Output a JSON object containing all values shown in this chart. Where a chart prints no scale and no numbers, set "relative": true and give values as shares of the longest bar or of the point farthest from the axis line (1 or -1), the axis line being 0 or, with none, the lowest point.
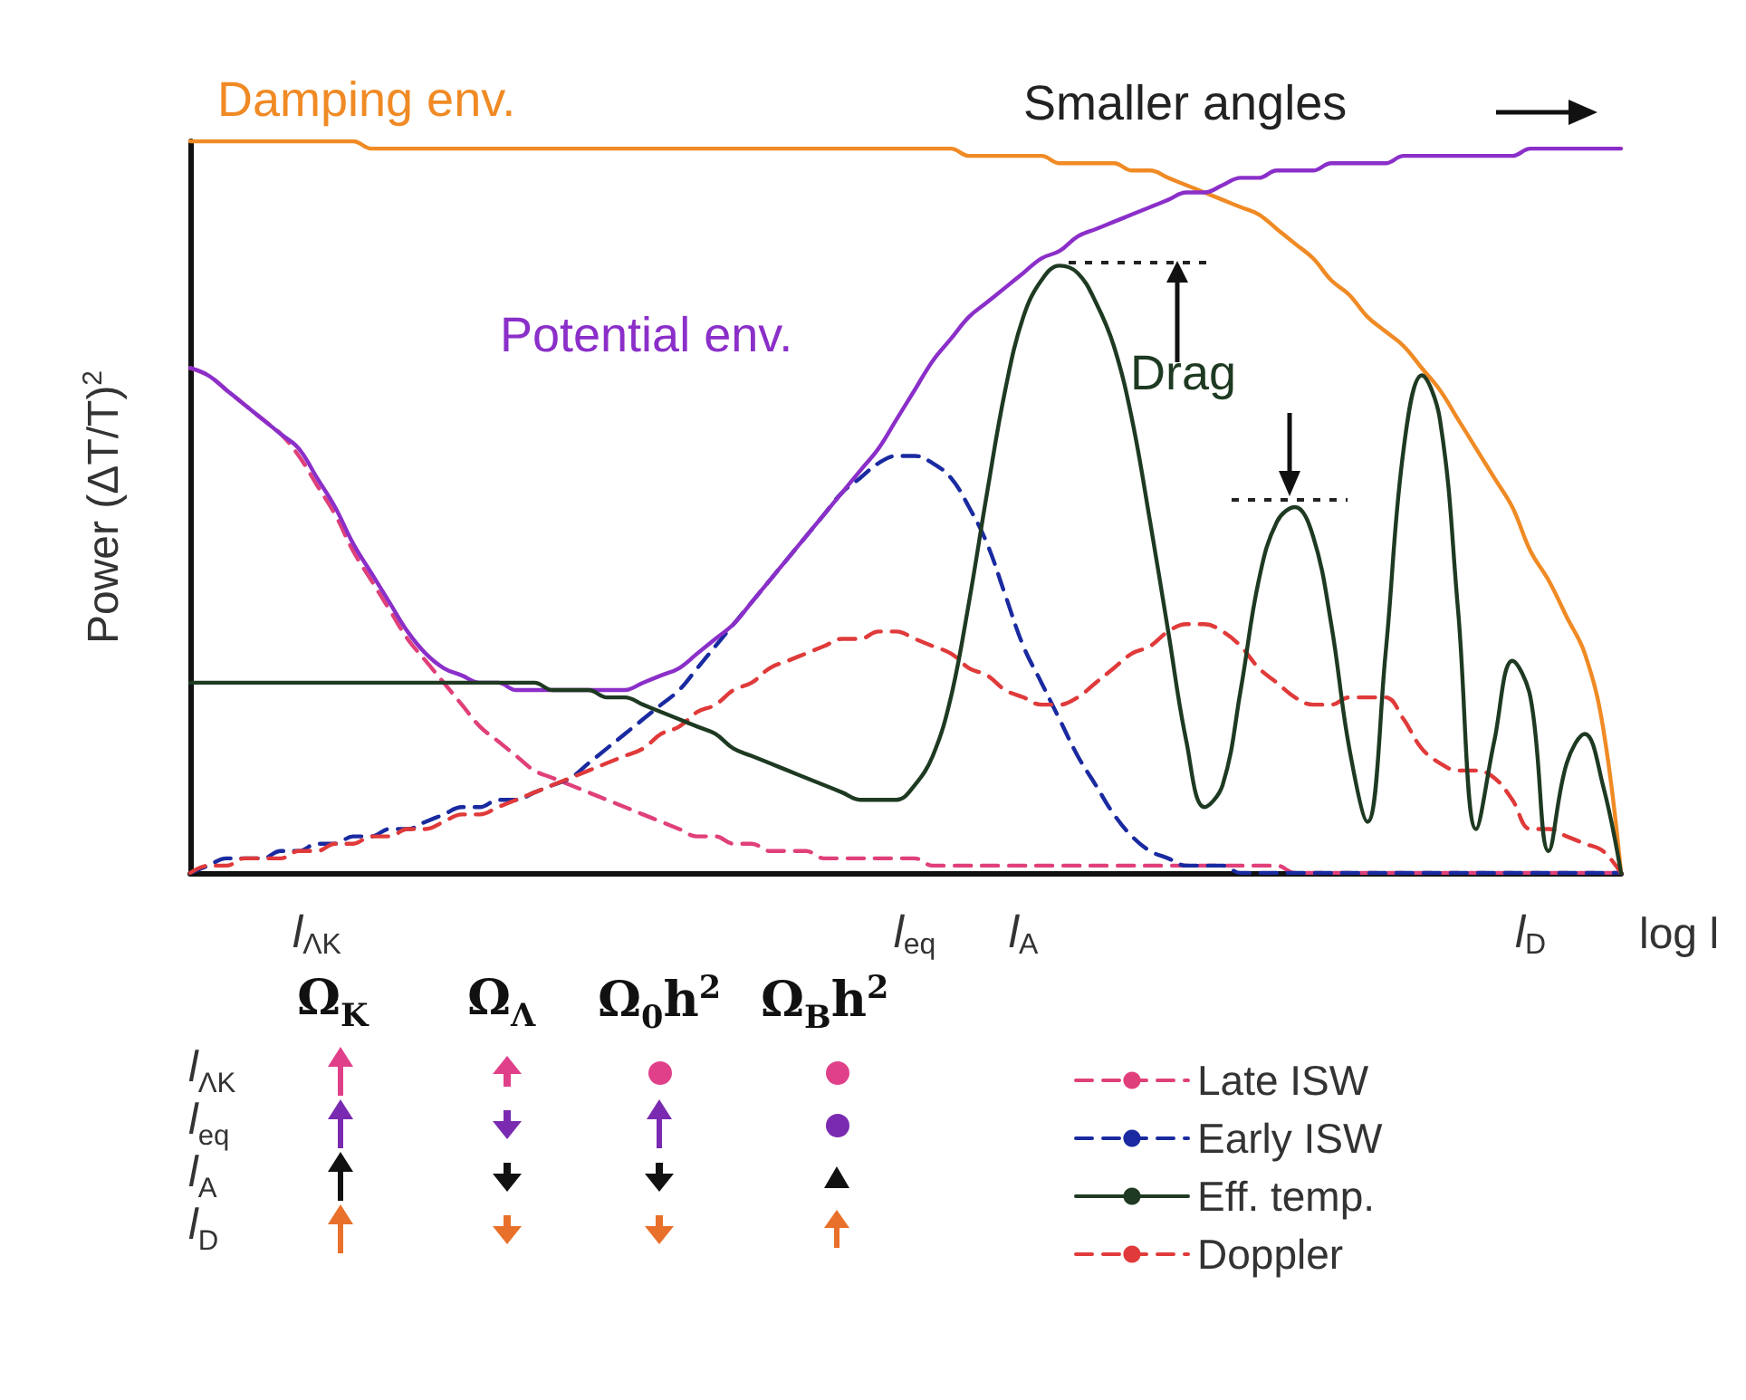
{
  "chart_data": {
    "type": "line",
    "relative": true,
    "ylabel": "Power (ΔT/T)$^{2}$",
    "xlabel": "log l",
    "categories": [
      null,
      null,
      null,
      null,
      null,
      null,
      null,
      "l$_{ΛK}$",
      null,
      null,
      null,
      null,
      null,
      null,
      null,
      null,
      null,
      null,
      null,
      null,
      null,
      null,
      null,
      null,
      null,
      null,
      null,
      null,
      null,
      null,
      null,
      null,
      null,
      null,
      null,
      null,
      null,
      null,
      null,
      null,
      "l$_{eq}$",
      null,
      null,
      null,
      null,
      null,
      "l$_{A}$",
      null,
      null,
      null,
      null,
      null,
      null,
      null,
      null,
      null,
      null,
      null,
      null,
      null,
      null,
      null,
      null,
      null,
      null,
      null,
      null,
      null,
      null,
      null,
      null,
      null,
      null,
      null,
      "l$_{D}$",
      null,
      null,
      null,
      null,
      null
    ],
    "series": [
      {
        "color": "#f08a24",
        "line_style": "solid",
        "values": [
          1.0,
          1.0,
          1.0,
          1.0,
          1.0,
          1.0,
          1.0,
          1.0,
          1.0,
          1.0,
          0.99,
          0.99,
          0.99,
          0.99,
          0.99,
          0.99,
          0.99,
          0.99,
          0.99,
          0.99,
          0.99,
          0.99,
          0.99,
          0.99,
          0.99,
          0.99,
          0.99,
          0.99,
          0.99,
          0.99,
          0.99,
          0.99,
          0.99,
          0.99,
          0.99,
          0.99,
          0.99,
          0.99,
          0.99,
          0.99,
          0.99,
          0.99,
          0.99,
          0.98,
          0.98,
          0.98,
          0.98,
          0.98,
          0.97,
          0.97,
          0.97,
          0.97,
          0.96,
          0.96,
          0.95,
          0.94,
          0.93,
          0.92,
          0.91,
          0.9,
          0.88,
          0.86,
          0.84,
          0.81,
          0.79,
          0.76,
          0.74,
          0.72,
          0.69,
          0.66,
          0.62,
          0.58,
          0.54,
          0.5,
          0.44,
          0.4,
          0.35,
          0.3,
          0.2,
          0
        ]
      },
      {
        "color": "#8b2fc9",
        "line_style": "solid",
        "values": [
          0.69,
          0.68,
          0.66,
          0.64,
          0.62,
          0.6,
          0.58,
          0.54,
          0.5,
          0.45,
          0.41,
          0.37,
          0.33,
          0.3,
          0.28,
          0.27,
          0.26,
          0.26,
          0.25,
          0.25,
          0.25,
          0.25,
          0.25,
          0.25,
          0.25,
          0.26,
          0.27,
          0.28,
          0.3,
          0.32,
          0.34,
          0.37,
          0.4,
          0.43,
          0.46,
          0.49,
          0.52,
          0.55,
          0.58,
          0.62,
          0.66,
          0.7,
          0.73,
          0.76,
          0.78,
          0.8,
          0.82,
          0.84,
          0.85,
          0.87,
          0.88,
          0.89,
          0.9,
          0.91,
          0.92,
          0.93,
          0.93,
          0.94,
          0.95,
          0.95,
          0.96,
          0.96,
          0.96,
          0.97,
          0.97,
          0.97,
          0.97,
          0.98,
          0.98,
          0.98,
          0.98,
          0.98,
          0.98,
          0.98,
          0.99,
          0.99,
          0.99,
          0.99,
          0.99,
          0.99
        ]
      },
      {
        "name": "Late ISW",
        "color": "#e0407a",
        "line_style": "dashed",
        "values": [
          0.69,
          0.68,
          0.66,
          0.64,
          0.62,
          0.6,
          0.57,
          0.53,
          0.49,
          0.44,
          0.4,
          0.36,
          0.32,
          0.29,
          0.26,
          0.23,
          0.2,
          0.18,
          0.16,
          0.14,
          0.13,
          0.12,
          0.11,
          0.1,
          0.09,
          0.08,
          0.07,
          0.06,
          0.05,
          0.05,
          0.04,
          0.04,
          0.03,
          0.03,
          0.03,
          0.02,
          0.02,
          0.02,
          0.02,
          0.02,
          0.02,
          0.01,
          0.01,
          0.01,
          0.01,
          0.01,
          0.01,
          0.01,
          0.01,
          0.01,
          0.01,
          0.01,
          0.01,
          0.01,
          0.01,
          0.01,
          0.01,
          0.01,
          0.01,
          0.01,
          0.01,
          0,
          0,
          0,
          0,
          0,
          0,
          0,
          0,
          0,
          0,
          0,
          0,
          0,
          0,
          0,
          0,
          0,
          0,
          0
        ]
      },
      {
        "name": "Early ISW",
        "color": "#1a2aa0",
        "line_style": "dashed",
        "values": [
          0,
          0.01,
          0.02,
          0.02,
          0.02,
          0.03,
          0.03,
          0.04,
          0.04,
          0.05,
          0.05,
          0.06,
          0.06,
          0.07,
          0.08,
          0.09,
          0.09,
          0.1,
          0.1,
          0.11,
          0.12,
          0.13,
          0.15,
          0.17,
          0.19,
          0.21,
          0.23,
          0.25,
          0.28,
          0.31,
          0.34,
          0.37,
          0.4,
          0.43,
          0.46,
          0.49,
          0.52,
          0.54,
          0.56,
          0.57,
          0.57,
          0.56,
          0.54,
          0.5,
          0.45,
          0.38,
          0.31,
          0.26,
          0.21,
          0.16,
          0.12,
          0.08,
          0.05,
          0.03,
          0.02,
          0.01,
          0.01,
          0.01,
          0,
          0,
          0,
          0,
          0,
          0,
          0,
          0,
          0,
          0,
          0,
          0,
          0,
          0,
          0,
          0,
          0,
          0,
          0,
          0,
          0,
          0
        ]
      },
      {
        "name": "Eff. temp.",
        "color": "#1e3a22",
        "line_style": "solid",
        "values": [
          0.26,
          0.26,
          0.26,
          0.26,
          0.26,
          0.26,
          0.26,
          0.26,
          0.26,
          0.26,
          0.26,
          0.26,
          0.26,
          0.26,
          0.26,
          0.26,
          0.26,
          0.26,
          0.26,
          0.26,
          0.25,
          0.25,
          0.25,
          0.24,
          0.24,
          0.23,
          0.22,
          0.21,
          0.2,
          0.19,
          0.17,
          0.16,
          0.15,
          0.14,
          0.13,
          0.12,
          0.11,
          0.1,
          0.1,
          0.1,
          0.12,
          0.16,
          0.24,
          0.37,
          0.52,
          0.66,
          0.76,
          0.81,
          0.83,
          0.82,
          0.78,
          0.72,
          0.62,
          0.48,
          0.33,
          0.18,
          0.09,
          0.12,
          0.25,
          0.4,
          0.48,
          0.5,
          0.46,
          0.34,
          0.17,
          0.07,
          0.3,
          0.58,
          0.68,
          0.62,
          0.36,
          0.06,
          0.18,
          0.29,
          0.24,
          0.03,
          0.15,
          0.19,
          0.12,
          0
        ]
      },
      {
        "name": "Doppler",
        "color": "#e03a3a",
        "line_style": "dashed",
        "values": [
          0,
          0.01,
          0.01,
          0.02,
          0.02,
          0.02,
          0.03,
          0.03,
          0.04,
          0.04,
          0.05,
          0.05,
          0.06,
          0.06,
          0.07,
          0.08,
          0.08,
          0.09,
          0.1,
          0.11,
          0.12,
          0.13,
          0.14,
          0.15,
          0.16,
          0.17,
          0.19,
          0.2,
          0.22,
          0.23,
          0.25,
          0.26,
          0.28,
          0.29,
          0.3,
          0.31,
          0.32,
          0.32,
          0.33,
          0.33,
          0.32,
          0.31,
          0.3,
          0.28,
          0.27,
          0.25,
          0.24,
          0.23,
          0.23,
          0.24,
          0.26,
          0.28,
          0.3,
          0.31,
          0.33,
          0.34,
          0.34,
          0.33,
          0.31,
          0.28,
          0.26,
          0.24,
          0.23,
          0.23,
          0.24,
          0.24,
          0.24,
          0.21,
          0.17,
          0.15,
          0.14,
          0.14,
          0.13,
          0.1,
          0.06,
          0.06,
          0.05,
          0.04,
          0.03,
          0
        ]
      }
    ],
    "annotations": [
      "Damping env.",
      "Potential env.",
      "Smaller angles",
      "Drag",
      "Ω$_{K}$",
      "Ω$_{Λ}$",
      "Ω$_{0}$h$^{2}$",
      "Ω$_{B}$h$^{2}$",
      "l$_{ΛK}$",
      "l$_{eq}$",
      "l$_{A}$",
      "l$_{D}$"
    ],
    "legend": "bottom right",
    "grid": false,
    "marker": "none",
    "tick_labels": "x"
  }
}
